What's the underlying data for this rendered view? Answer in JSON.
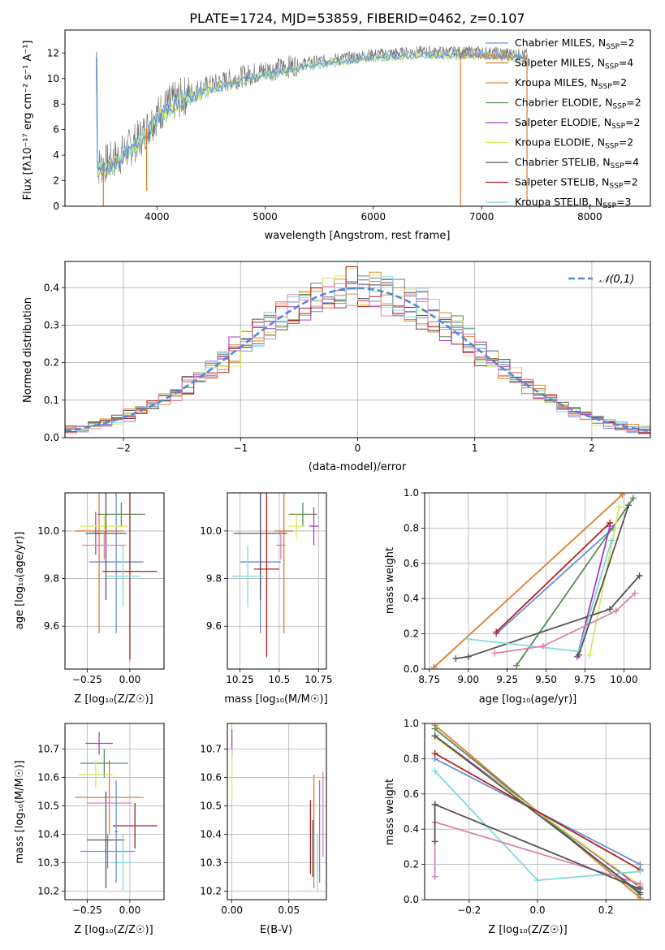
{
  "title": "PLATE=1724, MJD=53859, FIBERID=0462, z=0.107",
  "colors": {
    "chabrier_miles": "#6a8fd8",
    "salpeter_miles": "#e07b2a",
    "kroupa_miles": "#e08a3a",
    "chabrier_elodie": "#5a8a5a",
    "salpeter_elodie": "#a040c0",
    "kroupa_elodie": "#d8e860",
    "chabrier_stelib": "#555555",
    "salpeter_stelib": "#b02020",
    "kroupa_stelib": "#80d8e0",
    "pink": "#e080b0",
    "gaussian": "#5588d8"
  },
  "chart_data": [
    {
      "id": "spectrum",
      "type": "line",
      "xlabel": "wavelength [Angstrom, rest frame]",
      "ylabel": "Flux [fλ10⁻¹⁷ erg cm⁻² s⁻¹ A⁻¹]",
      "xlim": [
        3150,
        8560
      ],
      "ylim": [
        0,
        13.8
      ],
      "xticks": [
        4000,
        5000,
        6000,
        7000,
        8000
      ],
      "yticks": [
        0,
        2,
        4,
        6,
        8,
        10,
        12
      ],
      "legend_position": "upper right",
      "legend": [
        {
          "label": "Chabrier MILES, N",
          "sub": "SSP",
          "tail": "=2",
          "color": "#6a8fd8"
        },
        {
          "label": "Salpeter MILES, N",
          "sub": "SSP",
          "tail": "=4",
          "color": "#e07b2a"
        },
        {
          "label": "Kroupa MILES, N",
          "sub": "SSP",
          "tail": "=2",
          "color": "#e08a3a"
        },
        {
          "label": "Chabrier ELODIE, N",
          "sub": "SSP",
          "tail": "=2",
          "color": "#5a8a5a"
        },
        {
          "label": "Salpeter ELODIE, N",
          "sub": "SSP",
          "tail": "=2",
          "color": "#a040c0"
        },
        {
          "label": "Kroupa ELODIE, N",
          "sub": "SSP",
          "tail": "=2",
          "color": "#d8e860"
        },
        {
          "label": "Chabrier STELIB, N",
          "sub": "SSP",
          "tail": "=4",
          "color": "#555555"
        },
        {
          "label": "Salpeter STELIB, N",
          "sub": "SSP",
          "tail": "=2",
          "color": "#b02020"
        },
        {
          "label": "Kroupa STELIB, N",
          "sub": "SSP",
          "tail": "=3",
          "color": "#80d8e0"
        }
      ],
      "continuum": [
        [
          3450,
          3.1
        ],
        [
          3550,
          3.4
        ],
        [
          3650,
          3.9
        ],
        [
          3750,
          4.6
        ],
        [
          3850,
          5.4
        ],
        [
          3950,
          6.6
        ],
        [
          4050,
          7.6
        ],
        [
          4200,
          8.4
        ],
        [
          4400,
          9.2
        ],
        [
          4600,
          9.7
        ],
        [
          4800,
          10.2
        ],
        [
          5000,
          10.6
        ],
        [
          5200,
          10.9
        ],
        [
          5400,
          11.3
        ],
        [
          5600,
          11.5
        ],
        [
          5800,
          11.7
        ],
        [
          6000,
          11.9
        ],
        [
          6200,
          12.0
        ],
        [
          6400,
          12.1
        ],
        [
          6600,
          12.1
        ],
        [
          6800,
          12.1
        ],
        [
          7000,
          12.1
        ],
        [
          7200,
          12.0
        ],
        [
          7420,
          11.9
        ]
      ],
      "absorption_spikes": [
        [
          3505,
          0.0
        ],
        [
          3905,
          1.2
        ],
        [
          6805,
          0.0
        ],
        [
          7420,
          0.0
        ]
      ]
    },
    {
      "id": "residuals",
      "type": "line",
      "xlabel": "(data-model)/error",
      "ylabel": "Normed distribution",
      "xlim": [
        -2.5,
        2.5
      ],
      "ylim": [
        0,
        0.47
      ],
      "xticks": [
        -2,
        -1,
        0,
        1,
        2
      ],
      "yticks": [
        0.0,
        0.1,
        0.2,
        0.3,
        0.4
      ],
      "legend": [
        {
          "label": "𝒩(0,1)",
          "color": "#5588d8"
        }
      ],
      "bin_width": 0.1,
      "series_colors": [
        "#6a8fd8",
        "#e07b2a",
        "#e08a3a",
        "#5a8a5a",
        "#a040c0",
        "#d8e860",
        "#555555",
        "#b02020",
        "#80d8e0",
        "#e080b0"
      ]
    },
    {
      "id": "age_vs_Z",
      "type": "scatter",
      "xlabel": "Z [log₁₀(Z/Z☉)]",
      "ylabel": "age  [log₁₀(age/yr)]",
      "xlim": [
        -0.38,
        0.2
      ],
      "ylim": [
        9.42,
        10.16
      ],
      "xticks": [
        -0.25,
        0.0
      ],
      "xtick_labels": [
        "−0.25",
        "0.00"
      ],
      "yticks": [
        9.6,
        9.8,
        10.0
      ],
      "points": [
        {
          "x": -0.08,
          "y": 9.87,
          "xerr": 0.16,
          "yerr": 0.3,
          "color": "#6a8fd8"
        },
        {
          "x": -0.18,
          "y": 10.0,
          "xerr": 0.14,
          "yerr": 0.43,
          "color": "#e07b2a"
        },
        {
          "x": -0.05,
          "y": 10.07,
          "xerr": 0.14,
          "yerr": 0.05,
          "color": "#5a8a5a"
        },
        {
          "x": -0.2,
          "y": 9.99,
          "xerr": 0.03,
          "yerr": 0.09,
          "color": "#a040c0"
        },
        {
          "x": -0.15,
          "y": 10.02,
          "xerr": 0.14,
          "yerr": 0.05,
          "color": "#d8e860"
        },
        {
          "x": -0.14,
          "y": 9.99,
          "xerr": 0.12,
          "yerr": 0.28,
          "color": "#555555"
        },
        {
          "x": 0.0,
          "y": 9.83,
          "xerr": 0.16,
          "yerr": 0.37,
          "color": "#b02020"
        },
        {
          "x": -0.04,
          "y": 9.81,
          "xerr": 0.1,
          "yerr": 0.13,
          "color": "#80d8e0"
        },
        {
          "x": -0.15,
          "y": 9.94,
          "xerr": 0.13,
          "yerr": 0.06,
          "color": "#e080b0"
        }
      ]
    },
    {
      "id": "age_vs_mass",
      "type": "scatter",
      "xlabel": "mass [log₁₀(M/M☉)]",
      "xlim": [
        10.17,
        10.8
      ],
      "ylim": [
        9.42,
        10.16
      ],
      "xticks": [
        10.25,
        10.5,
        10.75
      ],
      "yticks": [
        9.6,
        9.8,
        10.0
      ],
      "points": [
        {
          "x": 10.38,
          "y": 9.87,
          "xerr": 0.13,
          "yerr": 0.3,
          "color": "#6a8fd8"
        },
        {
          "x": 10.53,
          "y": 10.0,
          "xerr": 0.06,
          "yerr": 0.43,
          "color": "#e07b2a"
        },
        {
          "x": 10.65,
          "y": 10.07,
          "xerr": 0.09,
          "yerr": 0.05,
          "color": "#5a8a5a"
        },
        {
          "x": 10.72,
          "y": 10.02,
          "xerr": 0.03,
          "yerr": 0.08,
          "color": "#a040c0"
        },
        {
          "x": 10.61,
          "y": 10.02,
          "xerr": 0.05,
          "yerr": 0.05,
          "color": "#d8e860"
        },
        {
          "x": 10.38,
          "y": 9.99,
          "xerr": 0.17,
          "yerr": 0.28,
          "color": "#555555"
        },
        {
          "x": 10.42,
          "y": 9.84,
          "xerr": 0.08,
          "yerr": 0.37,
          "color": "#b02020"
        },
        {
          "x": 10.3,
          "y": 9.81,
          "xerr": 0.1,
          "yerr": 0.13,
          "color": "#80d8e0"
        },
        {
          "x": 10.51,
          "y": 9.94,
          "xerr": 0.03,
          "yerr": 0.06,
          "color": "#e080b0"
        }
      ]
    },
    {
      "id": "massweight_vs_age",
      "type": "line",
      "xlabel": "age  [log₁₀(age/yr)]",
      "ylabel": "mass weight",
      "xlim": [
        8.72,
        10.17
      ],
      "ylim": [
        0,
        1.0
      ],
      "xticks": [
        8.75,
        9.0,
        9.25,
        9.5,
        9.75,
        10.0
      ],
      "xtick_labels": [
        "8.75",
        "9.00",
        "9.25",
        "9.50",
        "9.75",
        "10.00"
      ],
      "yticks": [
        0.0,
        0.2,
        0.4,
        0.6,
        0.8,
        1.0
      ],
      "series": [
        {
          "color": "#6a8fd8",
          "points": [
            [
              9.18,
              0.2
            ],
            [
              9.93,
              0.8
            ]
          ]
        },
        {
          "color": "#e07b2a",
          "points": [
            [
              8.78,
              0.01
            ],
            [
              9.99,
              0.99
            ]
          ]
        },
        {
          "color": "#5a8a5a",
          "points": [
            [
              9.31,
              0.02
            ],
            [
              10.06,
              0.97
            ]
          ]
        },
        {
          "color": "#a040c0",
          "points": [
            [
              9.7,
              0.07
            ],
            [
              9.91,
              0.81
            ]
          ]
        },
        {
          "color": "#d8e860",
          "points": [
            [
              9.78,
              0.08
            ],
            [
              9.97,
              0.92
            ]
          ]
        },
        {
          "color": "#555555",
          "points": [
            [
              8.92,
              0.06
            ],
            [
              9.0,
              0.07
            ],
            [
              9.91,
              0.34
            ],
            [
              10.1,
              0.53
            ]
          ]
        },
        {
          "color": "#b02020",
          "points": [
            [
              9.18,
              0.21
            ],
            [
              9.91,
              0.83
            ]
          ]
        },
        {
          "color": "#80d8e0",
          "points": [
            [
              9.0,
              0.17
            ],
            [
              9.71,
              0.1
            ],
            [
              9.92,
              0.73
            ]
          ]
        },
        {
          "color": "#e080b0",
          "points": [
            [
              9.17,
              0.09
            ],
            [
              9.48,
              0.13
            ],
            [
              9.95,
              0.33
            ],
            [
              10.07,
              0.43
            ]
          ]
        },
        {
          "color": "#555555",
          "points": [
            [
              9.71,
              0.08
            ],
            [
              10.03,
              0.93
            ]
          ]
        }
      ]
    },
    {
      "id": "mass_vs_Z",
      "type": "scatter",
      "xlabel": "Z [log₁₀(Z/Z☉)]",
      "ylabel": "mass [log₁₀(M/M☉)]",
      "xlim": [
        -0.38,
        0.2
      ],
      "ylim": [
        10.17,
        10.79
      ],
      "xticks": [
        -0.25,
        0.0
      ],
      "xtick_labels": [
        "−0.25",
        "0.00"
      ],
      "yticks": [
        10.2,
        10.3,
        10.4,
        10.5,
        10.6,
        10.7
      ],
      "points": [
        {
          "x": -0.13,
          "y": 10.34,
          "xerr": 0.16,
          "yerr": 0.06,
          "color": "#6a8fd8"
        },
        {
          "x": -0.12,
          "y": 10.53,
          "xerr": 0.2,
          "yerr": 0.13,
          "color": "#e07b2a"
        },
        {
          "x": -0.15,
          "y": 10.65,
          "xerr": 0.14,
          "yerr": 0.05,
          "color": "#5a8a5a"
        },
        {
          "x": -0.18,
          "y": 10.72,
          "xerr": 0.08,
          "yerr": 0.04,
          "color": "#a040c0"
        },
        {
          "x": -0.2,
          "y": 10.61,
          "xerr": 0.1,
          "yerr": 0.05,
          "color": "#d8e860"
        },
        {
          "x": -0.14,
          "y": 10.38,
          "xerr": 0.11,
          "yerr": 0.17,
          "color": "#555555"
        },
        {
          "x": 0.03,
          "y": 10.43,
          "xerr": 0.13,
          "yerr": 0.08,
          "color": "#b02020"
        },
        {
          "x": -0.04,
          "y": 10.3,
          "xerr": 0.06,
          "yerr": 0.1,
          "color": "#80d8e0"
        },
        {
          "x": -0.12,
          "y": 10.51,
          "xerr": 0.13,
          "yerr": 0.03,
          "color": "#e080b0"
        },
        {
          "x": -0.08,
          "y": 10.41,
          "xerr": 0.01,
          "yerr": 0.18,
          "color": "#6a8fd8"
        }
      ]
    },
    {
      "id": "mass_vs_ebv",
      "type": "scatter",
      "xlabel": "E(B-V)",
      "xlim": [
        -0.004,
        0.083
      ],
      "ylim": [
        10.17,
        10.79
      ],
      "xticks": [
        0.0,
        0.05
      ],
      "xtick_labels": [
        "0.00",
        "0.05"
      ],
      "yticks": [
        10.2,
        10.3,
        10.4,
        10.5,
        10.6,
        10.7
      ],
      "points": [
        {
          "x": 0.0,
          "y": 10.72,
          "yerr": 0.05,
          "color": "#a040c0"
        },
        {
          "x": 0.0,
          "y": 10.61,
          "yerr": 0.09,
          "color": "#d8e860"
        },
        {
          "x": 0.069,
          "y": 10.39,
          "yerr": 0.13,
          "color": "#b02020"
        },
        {
          "x": 0.072,
          "y": 10.41,
          "yerr": 0.2,
          "color": "#e07b2a"
        },
        {
          "x": 0.071,
          "y": 10.35,
          "yerr": 0.1,
          "color": "#555555"
        },
        {
          "x": 0.075,
          "y": 10.3,
          "yerr": 0.1,
          "color": "#80d8e0"
        },
        {
          "x": 0.077,
          "y": 10.41,
          "yerr": 0.18,
          "color": "#6a8fd8"
        },
        {
          "x": 0.08,
          "y": 10.47,
          "yerr": 0.15,
          "color": "#e080b0"
        }
      ]
    },
    {
      "id": "massweight_vs_Z",
      "type": "line",
      "xlabel": "Z [log₁₀(Z/Z☉)]",
      "ylabel": "mass weight",
      "xlim": [
        -0.33,
        0.33
      ],
      "ylim": [
        0,
        1.0
      ],
      "xticks": [
        -0.2,
        0.0,
        0.2
      ],
      "xtick_labels": [
        "−0.2",
        "0.0",
        "0.2"
      ],
      "yticks": [
        0.0,
        0.2,
        0.4,
        0.6,
        0.8,
        1.0
      ],
      "series": [
        {
          "color": "#6a8fd8",
          "points": [
            [
              -0.3,
              0.8
            ],
            [
              0.3,
              0.2
            ]
          ]
        },
        {
          "color": "#e07b2a",
          "points": [
            [
              -0.3,
              0.99
            ],
            [
              0.3,
              0.01
            ]
          ]
        },
        {
          "color": "#5a8a5a",
          "points": [
            [
              -0.3,
              0.97
            ],
            [
              0.3,
              0.03
            ]
          ]
        },
        {
          "color": "#a040c0",
          "points": [
            [
              -0.3,
              0.93
            ],
            [
              0.3,
              0.07
            ]
          ]
        },
        {
          "color": "#d8e860",
          "points": [
            [
              -0.3,
              0.92
            ],
            [
              0.3,
              0.08
            ]
          ]
        },
        {
          "color": "#b02020",
          "points": [
            [
              -0.3,
              0.83
            ],
            [
              0.3,
              0.17
            ]
          ]
        },
        {
          "color": "#80d8e0",
          "points": [
            [
              -0.3,
              0.73
            ],
            [
              0.0,
              0.11
            ],
            [
              0.3,
              0.16
            ]
          ]
        },
        {
          "color": "#e080b0",
          "points": [
            [
              -0.3,
              0.44
            ],
            [
              0.3,
              0.09
            ]
          ]
        },
        {
          "color": "#e080b0",
          "points": [
            [
              -0.3,
              0.13
            ],
            [
              -0.3,
              0.44
            ]
          ]
        },
        {
          "color": "#555555",
          "points": [
            [
              -0.3,
              0.54
            ],
            [
              0.3,
              0.06
            ]
          ]
        },
        {
          "color": "#555555",
          "points": [
            [
              -0.3,
              0.33
            ],
            [
              -0.3,
              0.54
            ]
          ]
        },
        {
          "color": "#555555",
          "points": [
            [
              -0.3,
              0.93
            ],
            [
              0.3,
              0.04
            ]
          ]
        }
      ]
    }
  ]
}
